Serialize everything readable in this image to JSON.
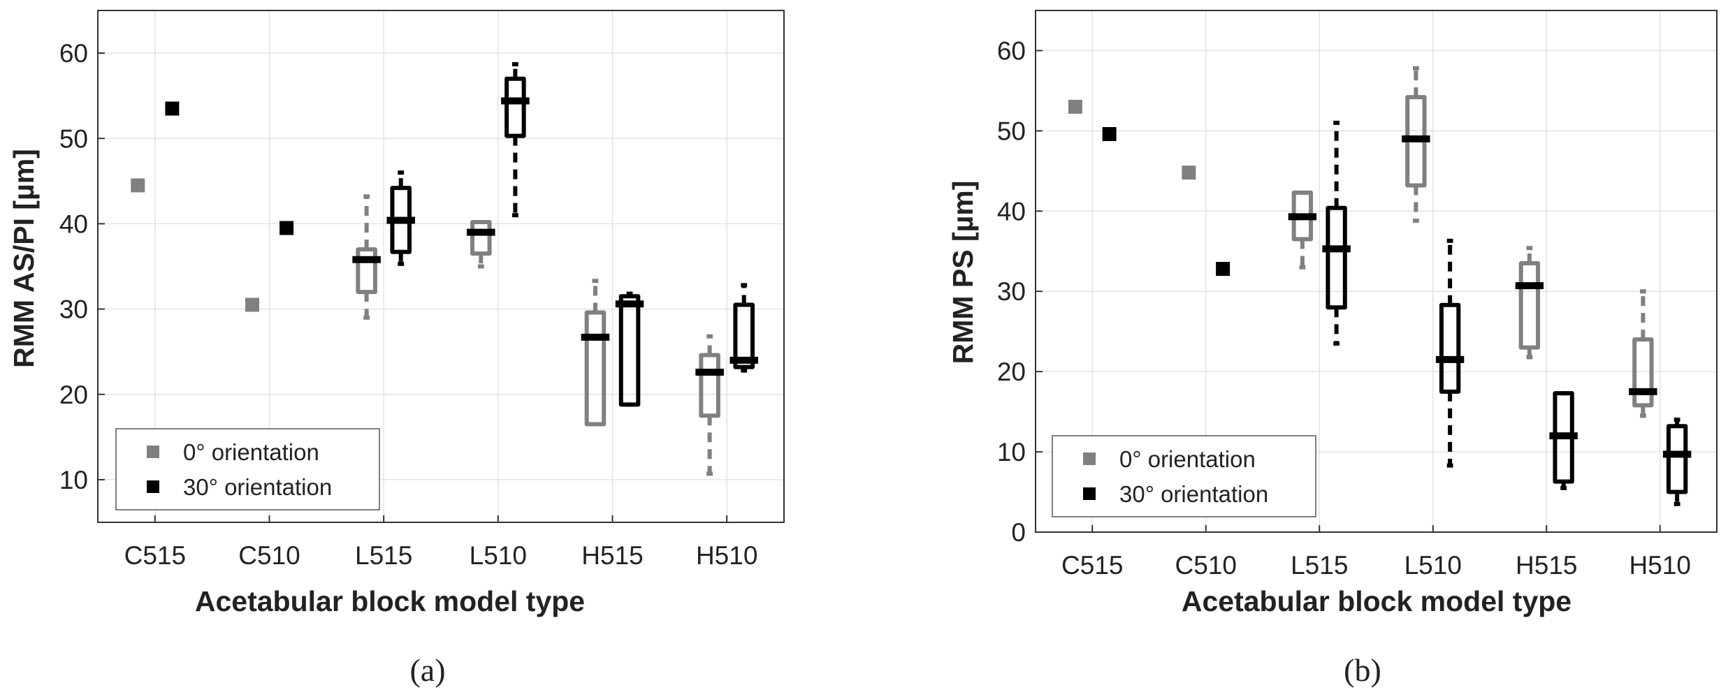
{
  "figure": {
    "captions": [
      "(a)",
      "(b)"
    ]
  },
  "colors": {
    "orientation_0": "#808080",
    "orientation_30": "#000000",
    "grid": "#e3e3e3",
    "axis": "#333333"
  },
  "chart_data": [
    {
      "type": "box",
      "caption": "(a)",
      "title": "",
      "xlabel": "Acetabular block model type",
      "ylabel": "RMM AS/PI [µm]",
      "categories": [
        "C515",
        "C510",
        "L515",
        "L510",
        "H515",
        "H510"
      ],
      "ylim": [
        5,
        65
      ],
      "yticks": [
        10,
        20,
        30,
        40,
        50,
        60
      ],
      "grid": true,
      "legend": {
        "position": "bottom-left",
        "entries": [
          "0° orientation",
          "30° orientation"
        ]
      },
      "series": [
        {
          "name": "0° orientation",
          "points": [
            {
              "category": "C515",
              "value": 44.5
            },
            {
              "category": "C510",
              "value": 30.5
            }
          ],
          "boxes": [
            {
              "category": "L515",
              "whisker_low": 29,
              "q1": 32,
              "median": 35.8,
              "q3": 37,
              "whisker_high": 43.2
            },
            {
              "category": "L510",
              "whisker_low": 35,
              "q1": 36.5,
              "median": 39,
              "q3": 40.2,
              "whisker_high": 40.2
            },
            {
              "category": "H515",
              "whisker_low": 16.5,
              "q1": 16.5,
              "median": 26.7,
              "q3": 29.6,
              "whisker_high": 33.3
            },
            {
              "category": "H510",
              "whisker_low": 10.7,
              "q1": 17.5,
              "median": 22.6,
              "q3": 24.6,
              "whisker_high": 26.8
            }
          ]
        },
        {
          "name": "30° orientation",
          "points": [
            {
              "category": "C515",
              "value": 53.5
            },
            {
              "category": "C510",
              "value": 39.5
            }
          ],
          "boxes": [
            {
              "category": "L515",
              "whisker_low": 35.3,
              "q1": 36.7,
              "median": 40.4,
              "q3": 44.2,
              "whisker_high": 46
            },
            {
              "category": "L510",
              "whisker_low": 41,
              "q1": 50.3,
              "median": 54.4,
              "q3": 57,
              "whisker_high": 58.7
            },
            {
              "category": "H515",
              "whisker_low": 18.8,
              "q1": 18.8,
              "median": 30.6,
              "q3": 31.5,
              "whisker_high": 31.8
            },
            {
              "category": "H510",
              "whisker_low": 22.8,
              "q1": 23.2,
              "median": 24,
              "q3": 30.5,
              "whisker_high": 32.8
            }
          ]
        }
      ]
    },
    {
      "type": "box",
      "caption": "(b)",
      "title": "",
      "xlabel": "Acetabular block model type",
      "ylabel": "RMM PS [µm]",
      "categories": [
        "C515",
        "C510",
        "L515",
        "L510",
        "H515",
        "H510"
      ],
      "ylim": [
        0,
        65
      ],
      "yticks": [
        0,
        10,
        20,
        30,
        40,
        50,
        60
      ],
      "grid": true,
      "legend": {
        "position": "bottom-left",
        "entries": [
          "0° orientation",
          "30° orientation"
        ]
      },
      "series": [
        {
          "name": "0° orientation",
          "points": [
            {
              "category": "C515",
              "value": 53
            },
            {
              "category": "C510",
              "value": 44.8
            }
          ],
          "boxes": [
            {
              "category": "L515",
              "whisker_low": 33,
              "q1": 36.5,
              "median": 39.3,
              "q3": 42.3,
              "whisker_high": 42.3
            },
            {
              "category": "L510",
              "whisker_low": 38.8,
              "q1": 43.2,
              "median": 49,
              "q3": 54.2,
              "whisker_high": 57.8
            },
            {
              "category": "H515",
              "whisker_low": 21.8,
              "q1": 23,
              "median": 30.7,
              "q3": 33.5,
              "whisker_high": 35.4
            },
            {
              "category": "H510",
              "whisker_low": 14.5,
              "q1": 15.8,
              "median": 17.5,
              "q3": 24,
              "whisker_high": 30
            }
          ]
        },
        {
          "name": "30° orientation",
          "points": [
            {
              "category": "C515",
              "value": 49.6
            },
            {
              "category": "C510",
              "value": 32.8
            }
          ],
          "boxes": [
            {
              "category": "L515",
              "whisker_low": 23.5,
              "q1": 28,
              "median": 35.3,
              "q3": 40.4,
              "whisker_high": 51
            },
            {
              "category": "L510",
              "whisker_low": 8.3,
              "q1": 17.5,
              "median": 21.5,
              "q3": 28.3,
              "whisker_high": 36.3
            },
            {
              "category": "H515",
              "whisker_low": 5.5,
              "q1": 6.3,
              "median": 12,
              "q3": 17.3,
              "whisker_high": 17.3
            },
            {
              "category": "H510",
              "whisker_low": 3.5,
              "q1": 5,
              "median": 9.7,
              "q3": 13.2,
              "whisker_high": 14
            }
          ]
        }
      ]
    }
  ]
}
